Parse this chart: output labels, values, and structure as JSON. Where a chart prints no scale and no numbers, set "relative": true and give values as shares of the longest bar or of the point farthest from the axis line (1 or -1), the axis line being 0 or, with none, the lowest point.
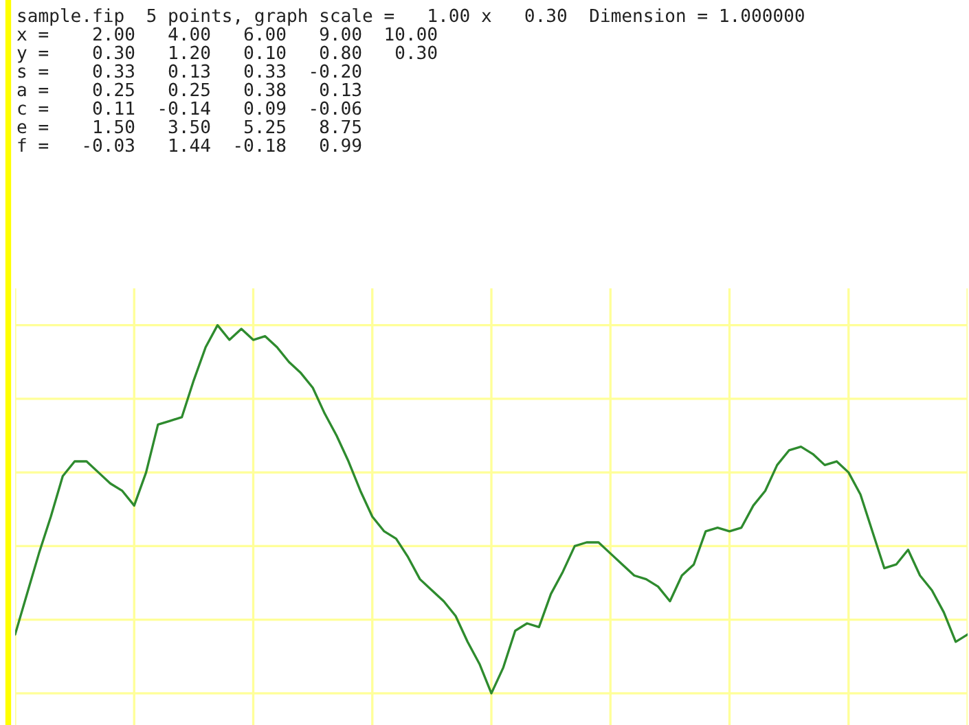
{
  "chart_data": {
    "type": "line",
    "relative": true,
    "grid": true,
    "tick_labels": false,
    "legend": false,
    "annotations": [
      "sample.fip  5 points, graph scale =   1.00 x   0.30  Dimension = 1.000000",
      "x =    2.00   4.00   6.00   9.00  10.00",
      "y =    0.30   1.20   0.10   0.80   0.30",
      "s =    0.33   0.13   0.33  -0.20",
      "a =    0.25   0.25   0.38   0.13",
      "c =    0.11  -0.14   0.09  -0.06",
      "e =    1.50   3.50   5.25   8.75",
      "f =   -0.03   1.44  -0.18   0.99"
    ],
    "categories": [
      null,
      null,
      null,
      null,
      null,
      null,
      null,
      null,
      null,
      null,
      null,
      null,
      null,
      null,
      null,
      null,
      null,
      null,
      null,
      null,
      null,
      null,
      null,
      null,
      null,
      null,
      null,
      null,
      null,
      null,
      null,
      null,
      null,
      null,
      null,
      null,
      null,
      null,
      null,
      null,
      null,
      null,
      null,
      null,
      null,
      null,
      null,
      null,
      null,
      null,
      null,
      null,
      null,
      null,
      null,
      null,
      null,
      null,
      null,
      null,
      null,
      null,
      null,
      null,
      null,
      null,
      null,
      null,
      null,
      null,
      null,
      null,
      null,
      null,
      null,
      null,
      null,
      null,
      null,
      null,
      null
    ],
    "series": [
      {
        "type": "line",
        "color": "#2e8b2e",
        "marker": "none",
        "line_style": "solid",
        "values": [
          0.16,
          0.27,
          0.38,
          0.48,
          0.59,
          0.63,
          0.63,
          0.6,
          0.57,
          0.55,
          0.51,
          0.6,
          0.73,
          0.74,
          0.75,
          0.85,
          0.94,
          1.0,
          0.96,
          0.99,
          0.96,
          0.97,
          0.94,
          0.9,
          0.87,
          0.83,
          0.76,
          0.7,
          0.63,
          0.55,
          0.48,
          0.44,
          0.42,
          0.37,
          0.31,
          0.28,
          0.25,
          0.21,
          0.14,
          0.08,
          0.0,
          0.07,
          0.17,
          0.19,
          0.18,
          0.27,
          0.33,
          0.4,
          0.41,
          0.41,
          0.38,
          0.35,
          0.32,
          0.31,
          0.29,
          0.25,
          0.32,
          0.35,
          0.44,
          0.45,
          0.44,
          0.45,
          0.51,
          0.55,
          0.62,
          0.66,
          0.67,
          0.65,
          0.62,
          0.63,
          0.6,
          0.54,
          0.44,
          0.34,
          0.35,
          0.39,
          0.32,
          0.28,
          0.22,
          0.14,
          0.16
        ]
      }
    ]
  }
}
